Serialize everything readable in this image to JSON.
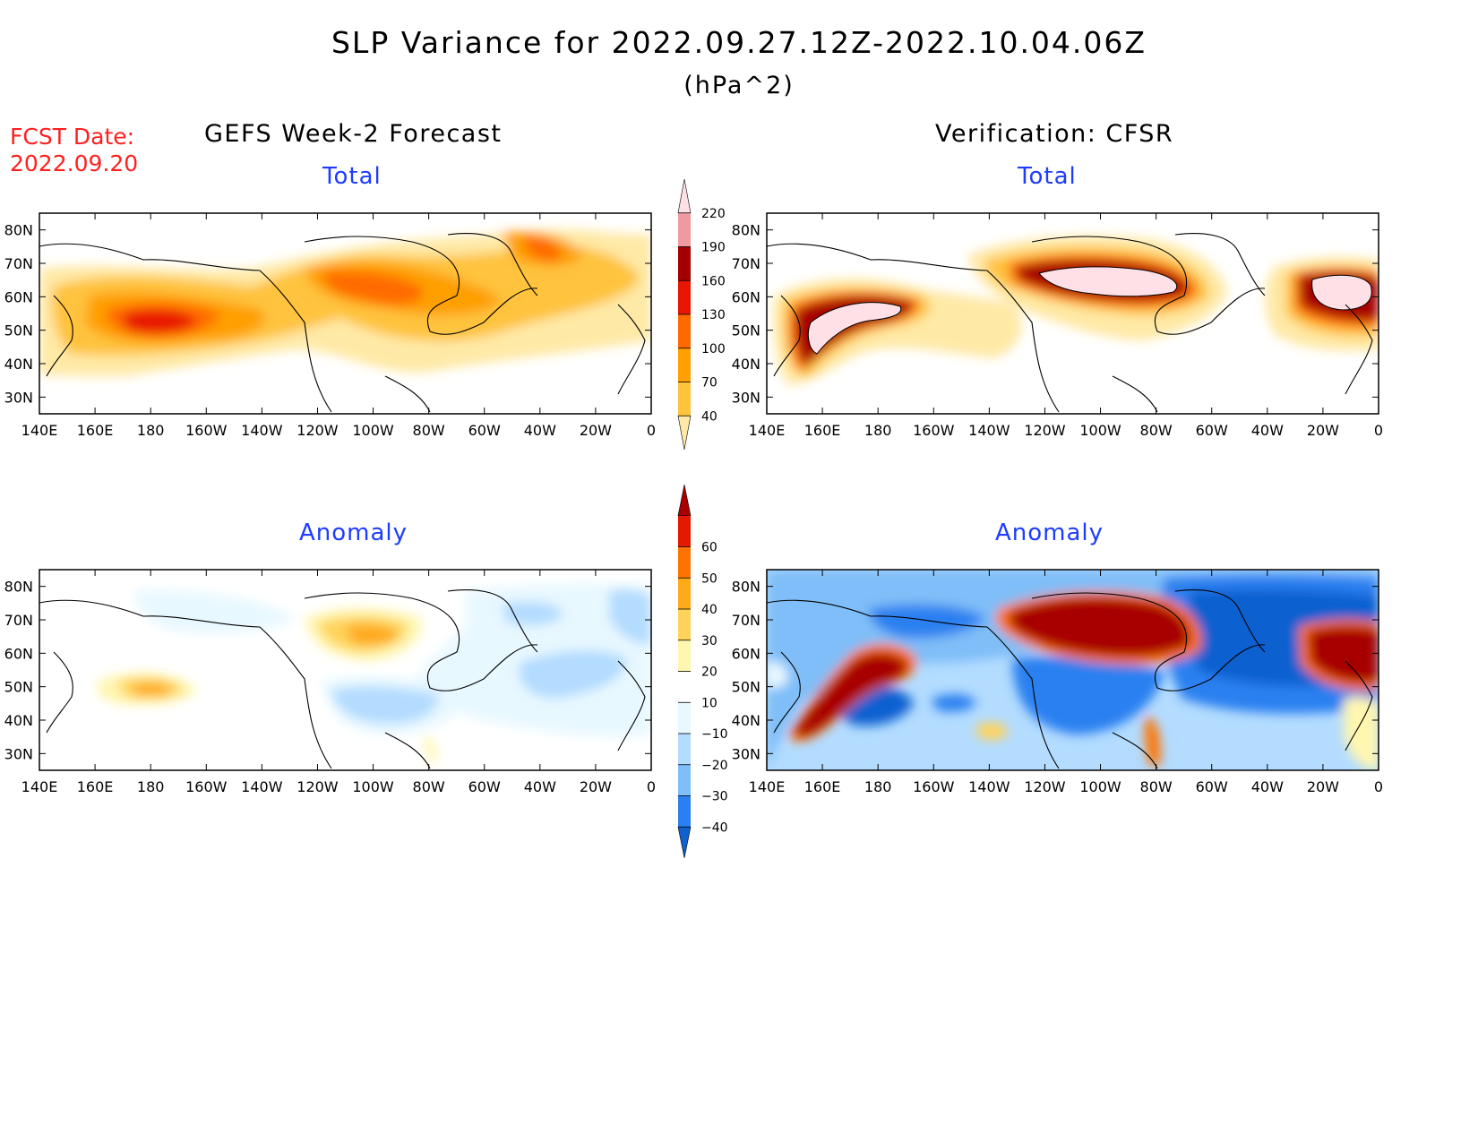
{
  "header": {
    "title": "SLP Variance for 2022.09.27.12Z-2022.10.04.06Z",
    "units": "(hPa^2)",
    "fcst_date_label": "FCST Date:",
    "fcst_date": "2022.09.20"
  },
  "columns": {
    "left": "GEFS Week-2 Forecast",
    "right": "Verification: CFSR"
  },
  "panels": [
    {
      "id": "gefs-total",
      "subtitle": "Total"
    },
    {
      "id": "cfsr-total",
      "subtitle": "Total"
    },
    {
      "id": "gefs-anomaly",
      "subtitle": "Anomaly"
    },
    {
      "id": "cfsr-anomaly",
      "subtitle": "Anomaly"
    }
  ],
  "axes": {
    "lon_ticks": [
      "140E",
      "160E",
      "180",
      "160W",
      "140W",
      "120W",
      "100W",
      "80W",
      "60W",
      "40W",
      "20W",
      "0"
    ],
    "lat_ticks": [
      "80N",
      "70N",
      "60N",
      "50N",
      "40N",
      "30N"
    ],
    "lon_range": [
      140,
      360
    ],
    "lat_range": [
      25,
      85
    ]
  },
  "colorbars": {
    "total": {
      "levels": [
        40,
        70,
        100,
        130,
        160,
        190,
        220
      ],
      "colors": [
        "#ffe9a6",
        "#ffc33c",
        "#ff9f00",
        "#ff6a00",
        "#e81600",
        "#a50000",
        "#ef9aa0",
        "#ffe0e6"
      ]
    },
    "anomaly": {
      "levels": [
        -40,
        -30,
        -20,
        -10,
        10,
        20,
        30,
        40,
        50,
        60
      ],
      "colors": [
        "#1060d0",
        "#2a80f0",
        "#7fbef8",
        "#b3dcff",
        "#e8f8ff",
        "#ffffff",
        "#fff6b0",
        "#ffd35a",
        "#ffaa1a",
        "#ff7300",
        "#e31a00",
        "#a80000"
      ]
    }
  }
}
